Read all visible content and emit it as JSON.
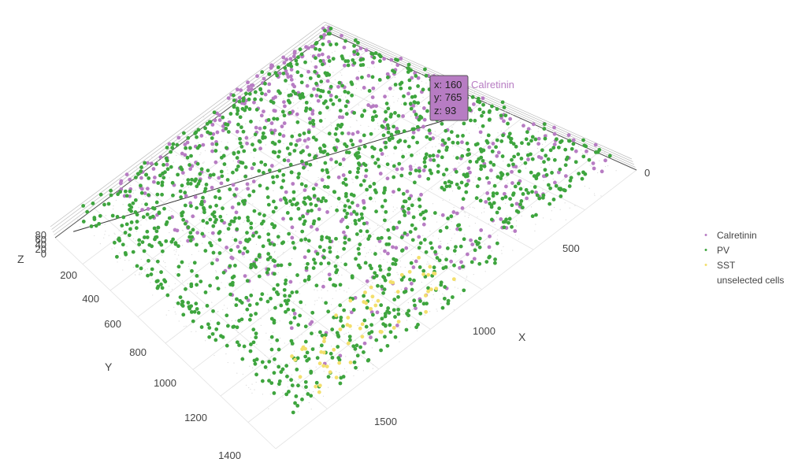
{
  "chart_data": {
    "type": "scatter",
    "title": "",
    "axes": {
      "x": {
        "title": "X",
        "ticks": [
          "0",
          "500",
          "1000",
          "1500"
        ],
        "range": [
          0,
          1700
        ]
      },
      "y": {
        "title": "Y",
        "ticks": [
          "200",
          "400",
          "600",
          "800",
          "1000",
          "1200",
          "1400"
        ],
        "range": [
          0,
          1450
        ]
      },
      "z": {
        "title": "Z",
        "ticks": [
          "0",
          "20",
          "40",
          "60",
          "80"
        ],
        "range": [
          0,
          90
        ]
      }
    },
    "grid": true,
    "legend_position": "right",
    "series": [
      {
        "name": "Calretinin",
        "color": "#b77cc3",
        "marker": "•"
      },
      {
        "name": "PV",
        "color": "#3ea53e",
        "marker": "•"
      },
      {
        "name": "SST",
        "color": "#f3df6c",
        "marker": "•"
      },
      {
        "name": "unselected cells",
        "color": "#d8d8d8",
        "marker": ""
      }
    ],
    "hover": {
      "x": "160",
      "y": "765",
      "z": "93",
      "series": "Calretinin",
      "bg": "#b77cc3"
    }
  },
  "hover_text": {
    "x_line": "x: 160",
    "y_line": "y: 765",
    "z_line": "z: 93"
  }
}
